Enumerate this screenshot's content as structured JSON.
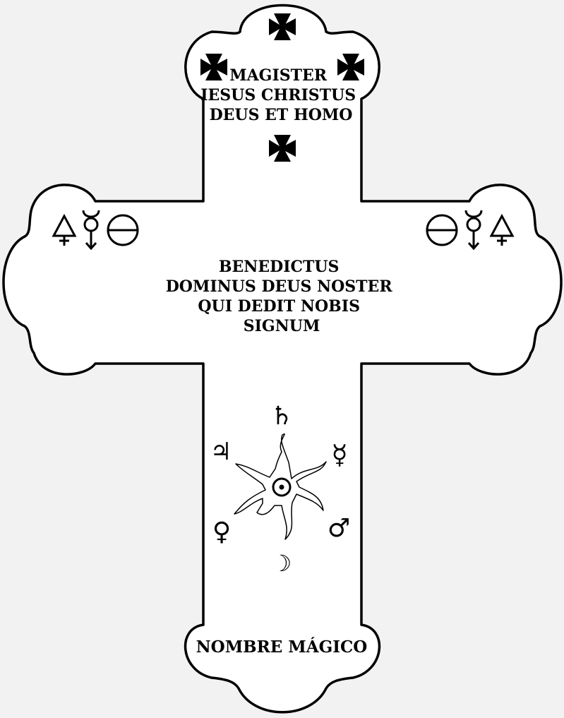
{
  "top_text": [
    "MAGISTER",
    "IESUS CHRISTUS",
    "DEUS ET HOMO"
  ],
  "center_text": [
    "BENEDICTUS",
    "DOMINUS DEUS NOSTER",
    "QUI DEDIT NOBIS",
    "SIGNUM"
  ],
  "bottom_text": "NOMBRE MÁGICO",
  "planets": {
    "saturn": "♄",
    "jupiter": "♃",
    "mercury": "☿",
    "venus": "♀",
    "mars": "♂",
    "moon": "☽",
    "sun": "☉"
  },
  "arm_symbols": {
    "left": [
      "🜍",
      "☿",
      "⊖"
    ],
    "right": [
      "⊖",
      "☿",
      "🜍"
    ]
  },
  "colors": {
    "line": "#000000",
    "fill": "#ffffff",
    "background": "#f2f2f2"
  }
}
